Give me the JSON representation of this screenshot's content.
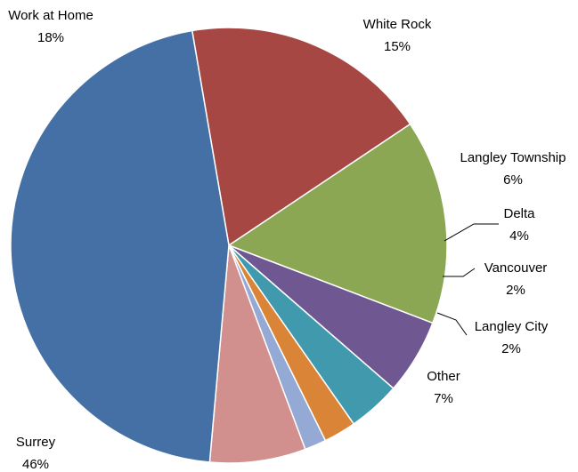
{
  "chart_data": {
    "type": "pie",
    "slices": [
      {
        "label": "Work at Home",
        "percent_label": "18%",
        "value": 18.3,
        "color": "#A64744"
      },
      {
        "label": "White Rock",
        "percent_label": "15%",
        "value": 15.2,
        "color": "#8BA753"
      },
      {
        "label": "Langley Township",
        "percent_label": "6%",
        "value": 5.6,
        "color": "#6F5792"
      },
      {
        "label": "Delta",
        "percent_label": "4%",
        "value": 3.9,
        "color": "#4199AE"
      },
      {
        "label": "Vancouver",
        "percent_label": "2%",
        "value": 2.4,
        "color": "#DA8437"
      },
      {
        "label": "Langley City",
        "percent_label": "2%",
        "value": 1.6,
        "color": "#94A9D3"
      },
      {
        "label": "Other",
        "percent_label": "7%",
        "value": 7.1,
        "color": "#D18F8E"
      },
      {
        "label": "Surrey",
        "percent_label": "46%",
        "value": 45.9,
        "color": "#4470A5"
      }
    ]
  }
}
